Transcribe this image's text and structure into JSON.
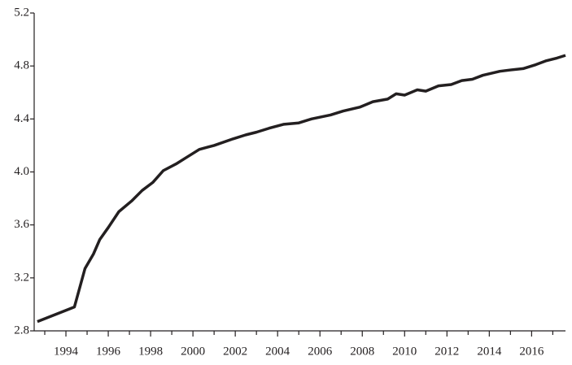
{
  "chart_data": {
    "type": "line",
    "x": [
      1992.65,
      1994.4,
      1994.9,
      1995.3,
      1995.6,
      1996.0,
      1996.5,
      1997.1,
      1997.6,
      1998.1,
      1998.6,
      1999.2,
      1999.7,
      2000.3,
      2001.0,
      2001.9,
      2002.5,
      2003.0,
      2003.6,
      2004.3,
      2005.0,
      2005.6,
      2006.5,
      2007.1,
      2007.9,
      2008.5,
      2009.2,
      2009.6,
      2010.0,
      2010.6,
      2011.0,
      2011.6,
      2012.2,
      2012.7,
      2013.2,
      2013.7,
      2014.5,
      2015.0,
      2015.6,
      2016.2,
      2016.7,
      2017.2,
      2017.6
    ],
    "series": [
      {
        "color": "#231f20",
        "values": [
          2.87,
          2.98,
          3.27,
          3.38,
          3.49,
          3.58,
          3.7,
          3.78,
          3.86,
          3.92,
          4.01,
          4.06,
          4.11,
          4.17,
          4.2,
          4.25,
          4.28,
          4.3,
          4.33,
          4.36,
          4.37,
          4.4,
          4.43,
          4.46,
          4.49,
          4.53,
          4.55,
          4.59,
          4.58,
          4.62,
          4.61,
          4.65,
          4.66,
          4.69,
          4.7,
          4.73,
          4.76,
          4.77,
          4.78,
          4.81,
          4.84,
          4.86,
          4.88
        ]
      }
    ],
    "xlim": [
      1992.5,
      2017.6
    ],
    "xticks": [
      1994,
      1996,
      1998,
      2000,
      2002,
      2004,
      2006,
      2008,
      2010,
      2012,
      2014,
      2016
    ],
    "x_minor_ticks": [
      1993,
      1995,
      1997,
      1999,
      2001,
      2003,
      2005,
      2007,
      2009,
      2011,
      2013,
      2015,
      2017
    ],
    "ylim": [
      2.8,
      5.2
    ],
    "yticks": [
      2.8,
      3.2,
      3.6,
      {
        "value": 4,
        "label": "4.0"
      },
      4.4,
      4.8,
      5.2
    ],
    "grid": false
  }
}
